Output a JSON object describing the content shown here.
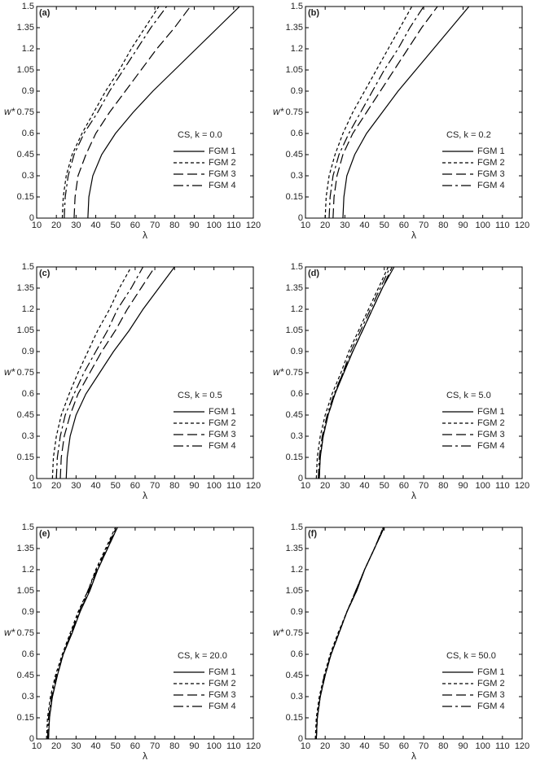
{
  "chart_data": [
    {
      "type": "line",
      "panel": "(a)",
      "legend_title": "CS, k = 0.0",
      "xlabel": "λ",
      "ylabel": "w*",
      "xlim": [
        10,
        120
      ],
      "ylim": [
        0,
        1.5
      ],
      "xticks": [
        10,
        20,
        30,
        40,
        50,
        60,
        70,
        80,
        90,
        100,
        110,
        120
      ],
      "yticks": [
        0,
        0.15,
        0.3,
        0.45,
        0.6,
        0.75,
        0.9,
        1.05,
        1.2,
        1.35,
        1.5
      ],
      "series": [
        {
          "name": "FGM 1",
          "color": "#000000",
          "dash": "none",
          "x": [
            36,
            36.5,
            38.5,
            43,
            50,
            59,
            69,
            80,
            91,
            102,
            113
          ],
          "values": [
            0,
            0.15,
            0.3,
            0.45,
            0.6,
            0.75,
            0.9,
            1.05,
            1.2,
            1.35,
            1.5
          ]
        },
        {
          "name": "FGM 2",
          "color": "#000000",
          "dash": "4,3",
          "x": [
            23,
            23.5,
            25,
            28,
            33,
            39,
            45,
            52,
            58,
            65,
            72
          ],
          "values": [
            0,
            0.15,
            0.3,
            0.45,
            0.6,
            0.75,
            0.9,
            1.05,
            1.2,
            1.35,
            1.5
          ]
        },
        {
          "name": "FGM 3",
          "color": "#000000",
          "dash": "12,5",
          "x": [
            29,
            29.5,
            31,
            35,
            40,
            47,
            55,
            63,
            71,
            80,
            88
          ],
          "values": [
            0,
            0.15,
            0.3,
            0.45,
            0.6,
            0.75,
            0.9,
            1.05,
            1.2,
            1.35,
            1.5
          ]
        },
        {
          "name": "FGM 4",
          "color": "#000000",
          "dash": "12,4,3,4",
          "x": [
            24,
            24.5,
            26,
            29,
            34,
            41,
            47,
            54,
            61,
            68,
            76
          ],
          "values": [
            0,
            0.15,
            0.3,
            0.45,
            0.6,
            0.75,
            0.9,
            1.05,
            1.2,
            1.35,
            1.5
          ]
        }
      ]
    },
    {
      "type": "line",
      "panel": "(b)",
      "legend_title": "CS, k = 0.2",
      "xlabel": "λ",
      "ylabel": "w*",
      "xlim": [
        10,
        120
      ],
      "ylim": [
        0,
        1.5
      ],
      "xticks": [
        10,
        20,
        30,
        40,
        50,
        60,
        70,
        80,
        90,
        100,
        110,
        120
      ],
      "yticks": [
        0,
        0.15,
        0.3,
        0.45,
        0.6,
        0.75,
        0.9,
        1.05,
        1.2,
        1.35,
        1.5
      ],
      "series": [
        {
          "name": "FGM 1",
          "color": "#000000",
          "dash": "none",
          "x": [
            29,
            29.5,
            31,
            35,
            41,
            49,
            57,
            66,
            75,
            84,
            93
          ],
          "values": [
            0,
            0.15,
            0.3,
            0.45,
            0.6,
            0.75,
            0.9,
            1.05,
            1.2,
            1.35,
            1.5
          ]
        },
        {
          "name": "FGM 2",
          "color": "#000000",
          "dash": "4,3",
          "x": [
            20,
            20.5,
            22,
            25,
            29,
            34,
            40,
            46,
            52,
            58,
            64
          ],
          "values": [
            0,
            0.15,
            0.3,
            0.45,
            0.6,
            0.75,
            0.9,
            1.05,
            1.2,
            1.35,
            1.5
          ]
        },
        {
          "name": "FGM 3",
          "color": "#000000",
          "dash": "12,5",
          "x": [
            24,
            24.5,
            26,
            29,
            34,
            41,
            48,
            55,
            62,
            69,
            77
          ],
          "values": [
            0,
            0.15,
            0.3,
            0.45,
            0.6,
            0.75,
            0.9,
            1.05,
            1.2,
            1.35,
            1.5
          ]
        },
        {
          "name": "FGM 4",
          "color": "#000000",
          "dash": "12,4,3,4",
          "x": [
            22,
            22.5,
            24,
            27,
            32,
            38,
            44,
            50,
            57,
            63,
            70
          ],
          "values": [
            0,
            0.15,
            0.3,
            0.45,
            0.6,
            0.75,
            0.9,
            1.05,
            1.2,
            1.35,
            1.5
          ]
        }
      ]
    },
    {
      "type": "line",
      "panel": "(c)",
      "legend_title": "CS, k = 0.5",
      "xlabel": "λ",
      "ylabel": "w*",
      "xlim": [
        10,
        120
      ],
      "ylim": [
        0,
        1.5
      ],
      "xticks": [
        10,
        20,
        30,
        40,
        50,
        60,
        70,
        80,
        90,
        100,
        110,
        120
      ],
      "yticks": [
        0,
        0.15,
        0.3,
        0.45,
        0.6,
        0.75,
        0.9,
        1.05,
        1.2,
        1.35,
        1.5
      ],
      "series": [
        {
          "name": "FGM 1",
          "color": "#000000",
          "dash": "none",
          "x": [
            25,
            25.5,
            27,
            30,
            35,
            42,
            49,
            57,
            64,
            72,
            80
          ],
          "values": [
            0,
            0.15,
            0.3,
            0.45,
            0.6,
            0.75,
            0.9,
            1.05,
            1.2,
            1.35,
            1.5
          ]
        },
        {
          "name": "FGM 2",
          "color": "#000000",
          "dash": "4,3",
          "x": [
            18,
            18.5,
            20,
            22.5,
            26.5,
            31,
            36,
            41,
            47,
            52,
            58
          ],
          "values": [
            0,
            0.15,
            0.3,
            0.45,
            0.6,
            0.75,
            0.9,
            1.05,
            1.2,
            1.35,
            1.5
          ]
        },
        {
          "name": "FGM 3",
          "color": "#000000",
          "dash": "12,5",
          "x": [
            22,
            22.5,
            24,
            27,
            31,
            37,
            43,
            50,
            56,
            63,
            70
          ],
          "values": [
            0,
            0.15,
            0.3,
            0.45,
            0.6,
            0.75,
            0.9,
            1.05,
            1.2,
            1.35,
            1.5
          ]
        },
        {
          "name": "FGM 4",
          "color": "#000000",
          "dash": "12,4,3,4",
          "x": [
            20,
            20.5,
            22,
            24.5,
            29,
            34,
            40,
            46,
            51,
            58,
            64
          ],
          "values": [
            0,
            0.15,
            0.3,
            0.45,
            0.6,
            0.75,
            0.9,
            1.05,
            1.2,
            1.35,
            1.5
          ]
        }
      ]
    },
    {
      "type": "line",
      "panel": "(d)",
      "legend_title": "CS, k = 5.0",
      "xlabel": "λ",
      "ylabel": "w*",
      "xlim": [
        10,
        120
      ],
      "ylim": [
        0,
        1.5
      ],
      "xticks": [
        10,
        20,
        30,
        40,
        50,
        60,
        70,
        80,
        90,
        100,
        110,
        120
      ],
      "yticks": [
        0,
        0.15,
        0.3,
        0.45,
        0.6,
        0.75,
        0.9,
        1.05,
        1.2,
        1.35,
        1.5
      ],
      "series": [
        {
          "name": "FGM 1",
          "color": "#000000",
          "dash": "none",
          "x": [
            17,
            17.5,
            19,
            21.5,
            25,
            29.5,
            34,
            39,
            44,
            49,
            55
          ],
          "values": [
            0,
            0.15,
            0.3,
            0.45,
            0.6,
            0.75,
            0.9,
            1.05,
            1.2,
            1.35,
            1.5
          ]
        },
        {
          "name": "FGM 2",
          "color": "#000000",
          "dash": "4,3",
          "x": [
            15.5,
            16,
            17.5,
            20,
            23.5,
            28,
            32,
            37,
            42,
            47,
            52
          ],
          "values": [
            0,
            0.15,
            0.3,
            0.45,
            0.6,
            0.75,
            0.9,
            1.05,
            1.2,
            1.35,
            1.5
          ]
        },
        {
          "name": "FGM 3",
          "color": "#000000",
          "dash": "12,5",
          "x": [
            17,
            17.5,
            19,
            21.5,
            25,
            29,
            34,
            39,
            44,
            49,
            54
          ],
          "values": [
            0,
            0.15,
            0.3,
            0.45,
            0.6,
            0.75,
            0.9,
            1.05,
            1.2,
            1.35,
            1.5
          ]
        },
        {
          "name": "FGM 4",
          "color": "#000000",
          "dash": "12,4,3,4",
          "x": [
            16.5,
            17,
            18.5,
            21,
            24.5,
            29,
            33,
            38,
            43,
            48,
            53
          ],
          "values": [
            0,
            0.15,
            0.3,
            0.45,
            0.6,
            0.75,
            0.9,
            1.05,
            1.2,
            1.35,
            1.5
          ]
        }
      ]
    },
    {
      "type": "line",
      "panel": "(e)",
      "legend_title": "CS, k = 20.0",
      "xlabel": "λ",
      "ylabel": "w*",
      "xlim": [
        10,
        120
      ],
      "ylim": [
        0,
        1.5
      ],
      "xticks": [
        10,
        20,
        30,
        40,
        50,
        60,
        70,
        80,
        90,
        100,
        110,
        120
      ],
      "yticks": [
        0,
        0.15,
        0.3,
        0.45,
        0.6,
        0.75,
        0.9,
        1.05,
        1.2,
        1.35,
        1.5
      ],
      "series": [
        {
          "name": "FGM 1",
          "color": "#000000",
          "dash": "none",
          "x": [
            16,
            16.5,
            18,
            20.5,
            23.5,
            28,
            32,
            37,
            41,
            46,
            51
          ],
          "values": [
            0,
            0.15,
            0.3,
            0.45,
            0.6,
            0.75,
            0.9,
            1.05,
            1.2,
            1.35,
            1.5
          ]
        },
        {
          "name": "FGM 2",
          "color": "#000000",
          "dash": "4,3",
          "x": [
            15,
            15.5,
            17,
            19.5,
            23,
            27,
            31,
            36,
            40,
            45,
            50
          ],
          "values": [
            0,
            0.15,
            0.3,
            0.45,
            0.6,
            0.75,
            0.9,
            1.05,
            1.2,
            1.35,
            1.5
          ]
        },
        {
          "name": "FGM 3",
          "color": "#000000",
          "dash": "12,5",
          "x": [
            16,
            16.5,
            18,
            20.5,
            23.5,
            27.5,
            32,
            36.5,
            41,
            46,
            51
          ],
          "values": [
            0,
            0.15,
            0.3,
            0.45,
            0.6,
            0.75,
            0.9,
            1.05,
            1.2,
            1.35,
            1.5
          ]
        },
        {
          "name": "FGM 4",
          "color": "#000000",
          "dash": "12,4,3,4",
          "x": [
            15.5,
            16,
            17.5,
            20,
            23.5,
            27.5,
            31.5,
            36,
            40.5,
            45.5,
            50.5
          ],
          "values": [
            0,
            0.15,
            0.3,
            0.45,
            0.6,
            0.75,
            0.9,
            1.05,
            1.2,
            1.35,
            1.5
          ]
        }
      ]
    },
    {
      "type": "line",
      "panel": "(f)",
      "legend_title": "CS, k = 50.0",
      "xlabel": "λ",
      "ylabel": "w*",
      "xlim": [
        10,
        120
      ],
      "ylim": [
        0,
        1.5
      ],
      "xticks": [
        10,
        20,
        30,
        40,
        50,
        60,
        70,
        80,
        90,
        100,
        110,
        120
      ],
      "yticks": [
        0,
        0.15,
        0.3,
        0.45,
        0.6,
        0.75,
        0.9,
        1.05,
        1.2,
        1.35,
        1.5
      ],
      "series": [
        {
          "name": "FGM 1",
          "color": "#000000",
          "dash": "none",
          "x": [
            15.5,
            16,
            17.5,
            20,
            23,
            27,
            31,
            36,
            40,
            45,
            50
          ],
          "values": [
            0,
            0.15,
            0.3,
            0.45,
            0.6,
            0.75,
            0.9,
            1.05,
            1.2,
            1.35,
            1.5
          ]
        },
        {
          "name": "FGM 2",
          "color": "#000000",
          "dash": "4,3",
          "x": [
            15,
            15.5,
            17,
            19.5,
            22.5,
            26.5,
            31,
            35.5,
            40,
            45,
            49.5
          ],
          "values": [
            0,
            0.15,
            0.3,
            0.45,
            0.6,
            0.75,
            0.9,
            1.05,
            1.2,
            1.35,
            1.5
          ]
        },
        {
          "name": "FGM 3",
          "color": "#000000",
          "dash": "12,5",
          "x": [
            15.5,
            16,
            17.5,
            20,
            23,
            27,
            31,
            36,
            40,
            45,
            50
          ],
          "values": [
            0,
            0.15,
            0.3,
            0.45,
            0.6,
            0.75,
            0.9,
            1.05,
            1.2,
            1.35,
            1.5
          ]
        },
        {
          "name": "FGM 4",
          "color": "#000000",
          "dash": "12,4,3,4",
          "x": [
            15.5,
            16,
            17.5,
            19.5,
            23,
            27,
            31,
            35.5,
            40,
            45,
            49.5
          ],
          "values": [
            0,
            0.15,
            0.3,
            0.45,
            0.6,
            0.75,
            0.9,
            1.05,
            1.2,
            1.35,
            1.5
          ]
        }
      ]
    }
  ]
}
